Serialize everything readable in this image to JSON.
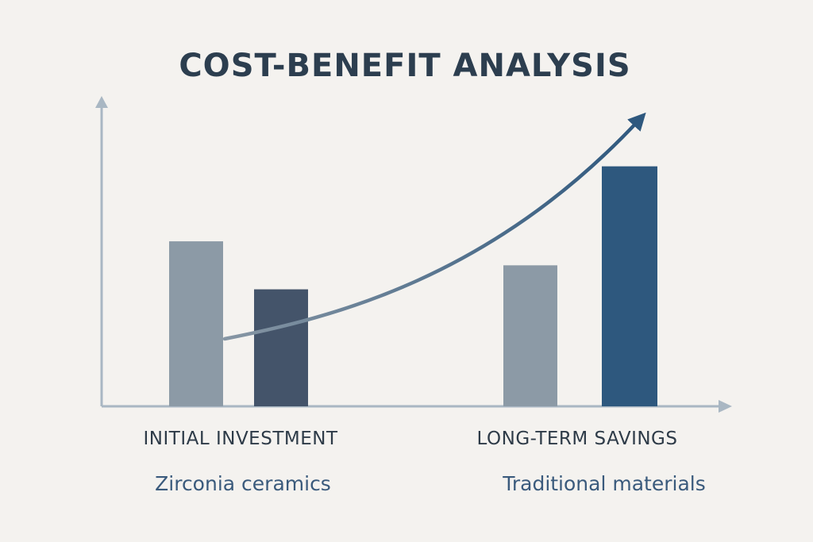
{
  "chart_data": {
    "type": "bar",
    "title": "COST-BENEFIT ANALYSIS",
    "categories": [
      "INITIAL INVESTMENT",
      "LONG-TERM SAVINGS"
    ],
    "series": [
      {
        "values": [
          55,
          47
        ]
      },
      {
        "values": [
          39,
          80
        ]
      }
    ],
    "ylim": [
      0,
      100
    ],
    "grid": false,
    "legend": {
      "placement": "bottom",
      "entries": [
        "Zirconia ceramics",
        "Traditional materials"
      ]
    },
    "trend_arrow": true,
    "colors": {
      "background": "#f4f2ef",
      "title": "#2c3e4f",
      "axis": "#a9b7c3",
      "label": "#2e3b48",
      "legend_text": "#3a5a7c",
      "series_initial": [
        "#8c9aa6",
        "#44546a"
      ],
      "series_savings": [
        "#8c9aa6",
        "#2e587e"
      ],
      "arrow_start": "#8796a4",
      "arrow_end": "#2e587e"
    }
  }
}
